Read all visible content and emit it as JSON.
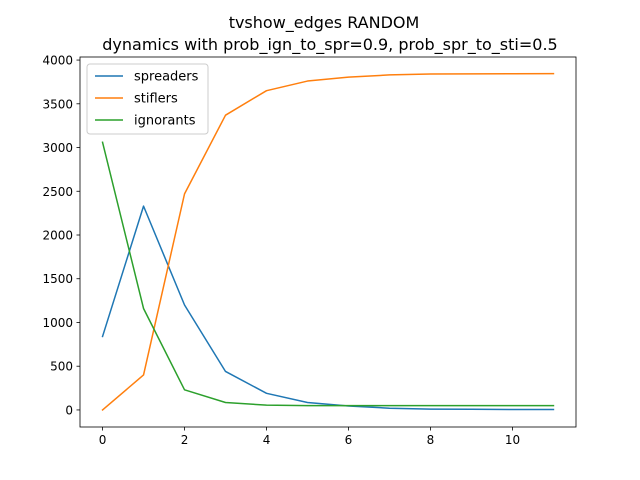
{
  "chart_data": {
    "type": "line",
    "title": "tvshow_edges RANDOM",
    "subtitle": "dynamics with prob_ign_to_spr=0.9, prob_spr_to_sti=0.5",
    "xlabel": "",
    "ylabel": "",
    "xlim": [
      -0.55,
      11.55
    ],
    "ylim": [
      -195,
      4035
    ],
    "x": [
      0,
      1,
      2,
      3,
      4,
      5,
      6,
      7,
      8,
      9,
      10,
      11
    ],
    "x_ticks": [
      0,
      2,
      4,
      6,
      8,
      10
    ],
    "y_ticks": [
      0,
      500,
      1000,
      1500,
      2000,
      2500,
      3000,
      3500,
      4000
    ],
    "grid": false,
    "legend_position": "upper-left",
    "series": [
      {
        "name": "spreaders",
        "color": "#1f77b4",
        "values": [
          840,
          2330,
          1200,
          440,
          190,
          85,
          45,
          20,
          10,
          8,
          5,
          5
        ]
      },
      {
        "name": "stiflers",
        "color": "#ff7f0e",
        "values": [
          0,
          400,
          2470,
          3370,
          3650,
          3760,
          3805,
          3830,
          3840,
          3842,
          3844,
          3845
        ]
      },
      {
        "name": "ignorants",
        "color": "#2ca02c",
        "values": [
          3060,
          1160,
          230,
          85,
          55,
          50,
          50,
          50,
          50,
          50,
          50,
          50
        ]
      }
    ]
  }
}
